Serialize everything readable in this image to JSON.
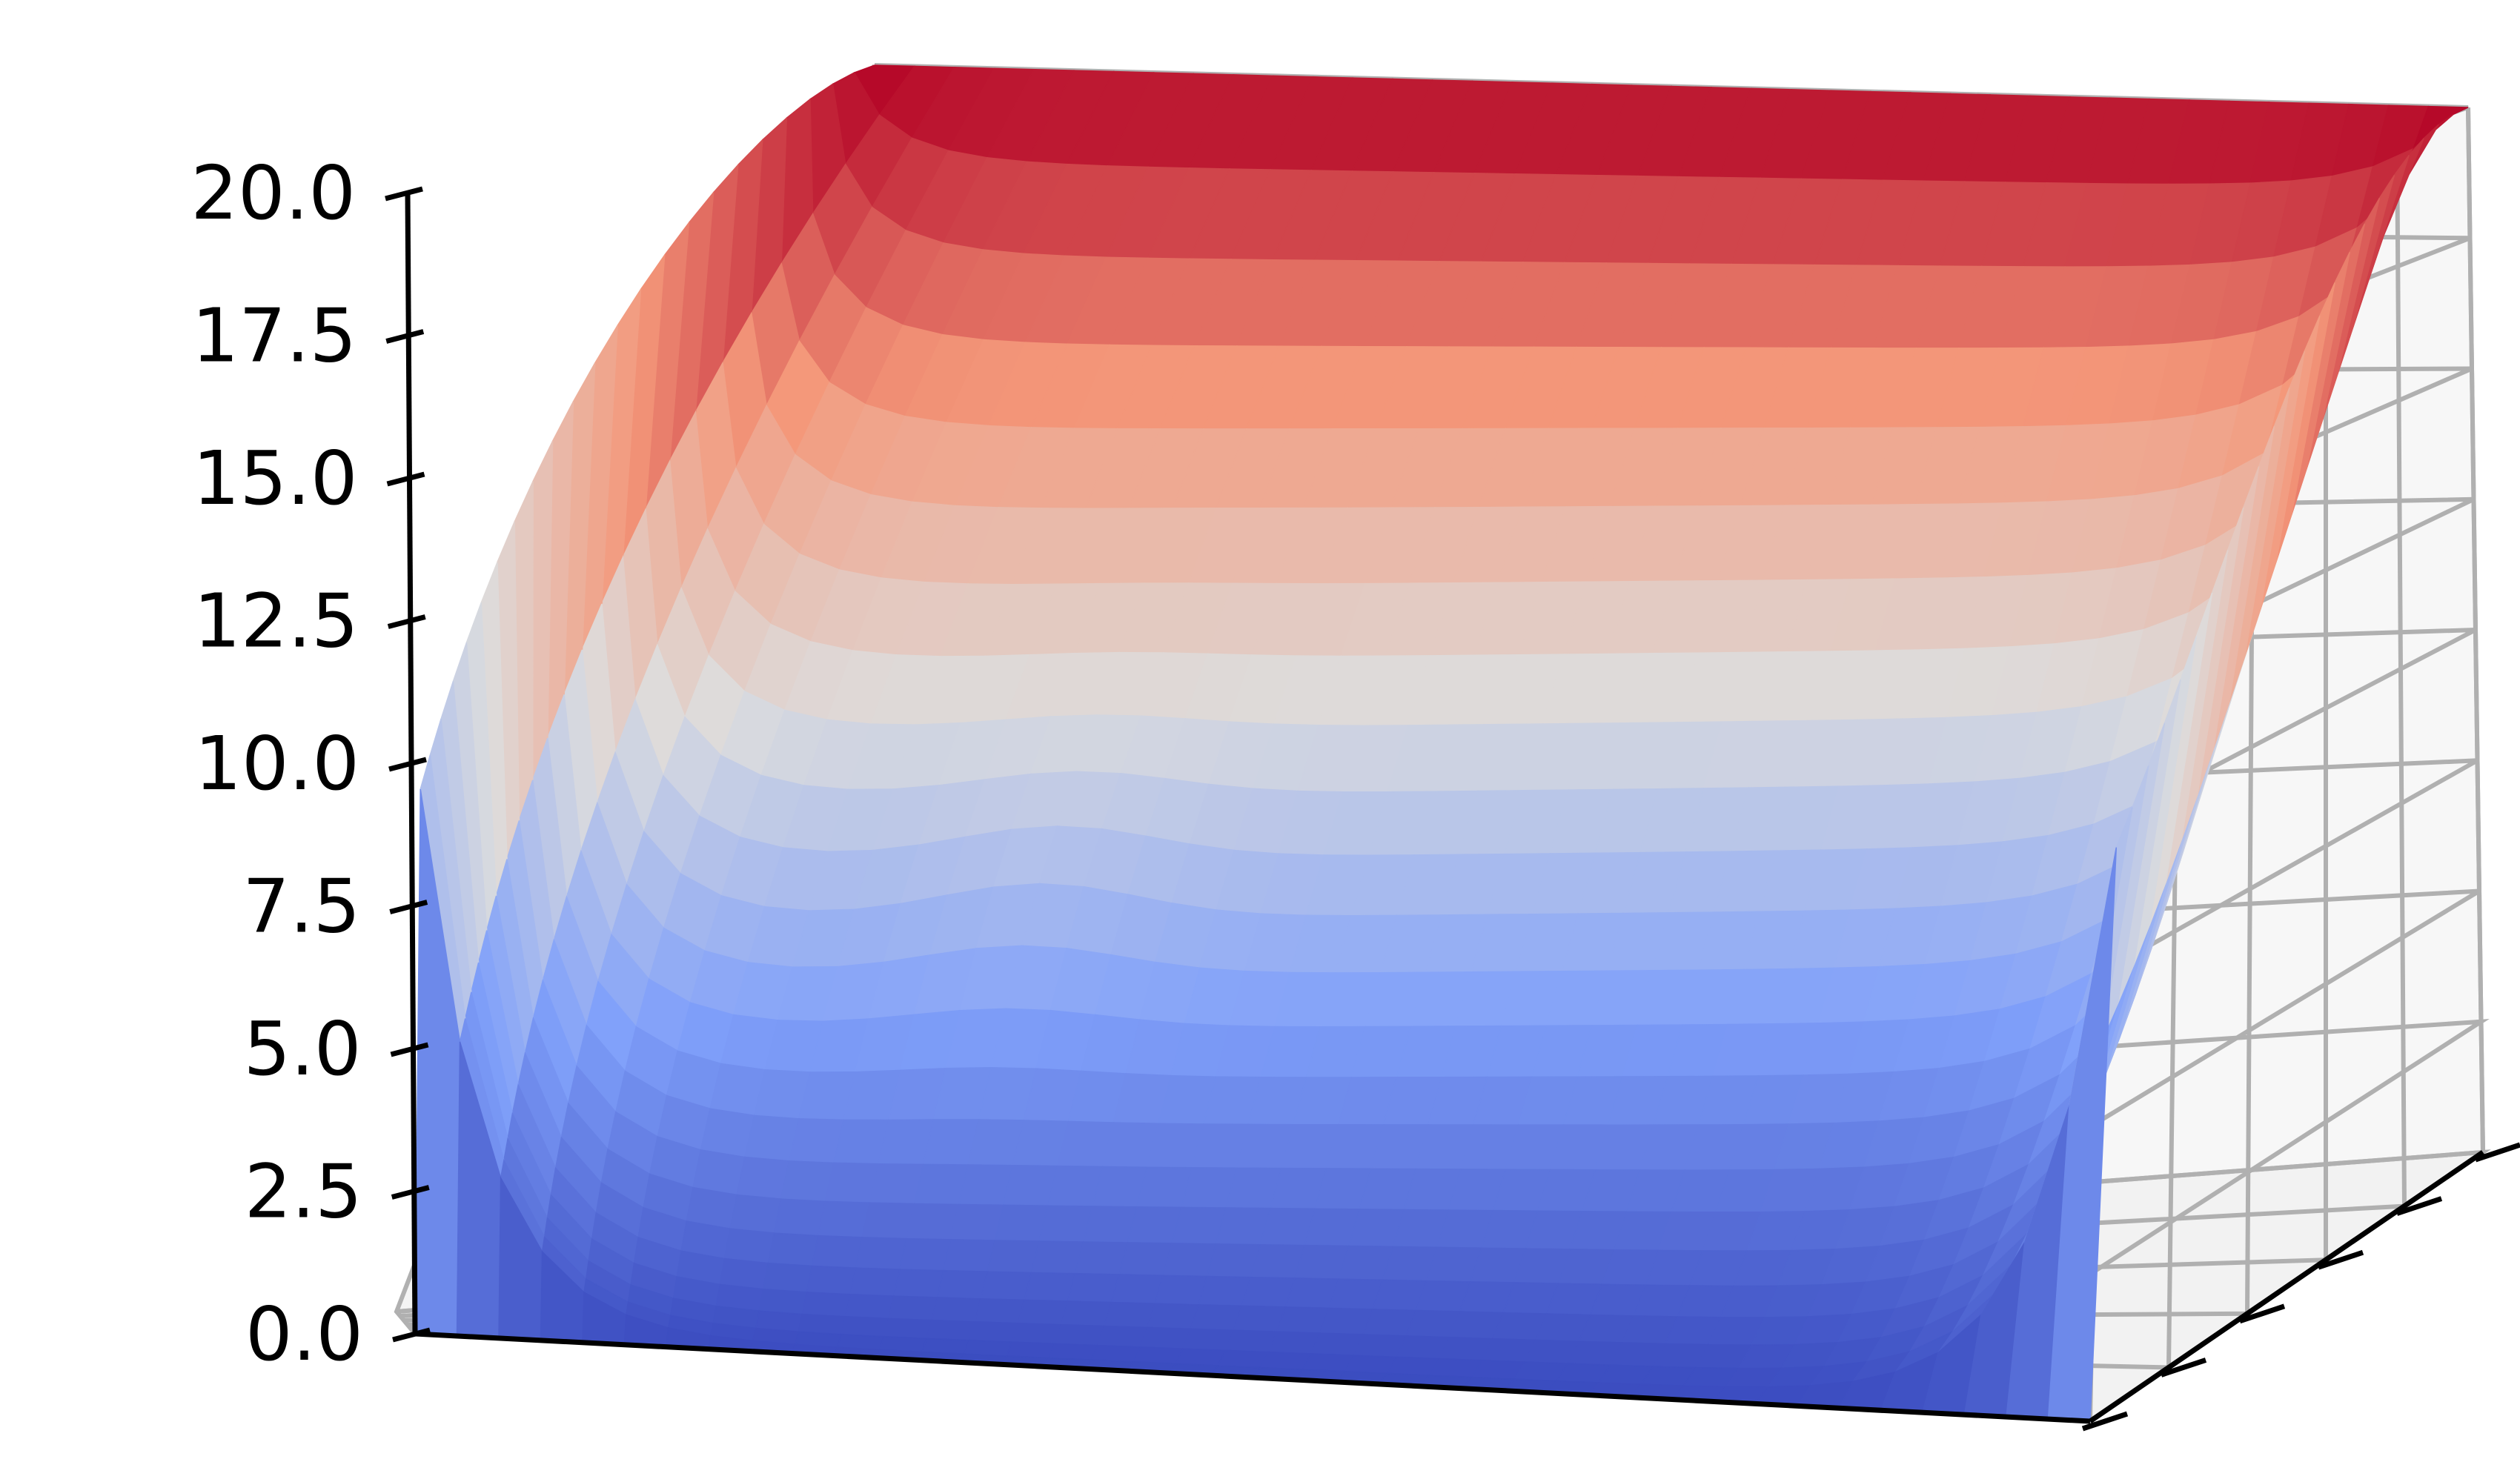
{
  "chart_data": {
    "type": "surface",
    "colormap": "coolwarm",
    "colors": {
      "low": "#3b4cc0",
      "mid": "#dddddd",
      "high": "#b40426",
      "pane": "#f4f4f4",
      "grid": "#b0b0b0",
      "axis": "#000000"
    },
    "z_axis": {
      "range": [
        0,
        20
      ],
      "ticks": [
        {
          "value": 0,
          "label": "0.0"
        },
        {
          "value": 2.5,
          "label": "2.5"
        },
        {
          "value": 5,
          "label": "5.0"
        },
        {
          "value": 7.5,
          "label": "7.5"
        },
        {
          "value": 10,
          "label": "10.0"
        },
        {
          "value": 12.5,
          "label": "12.5"
        },
        {
          "value": 15,
          "label": "15.0"
        },
        {
          "value": 17.5,
          "label": "17.5"
        },
        {
          "value": 20,
          "label": "20.0"
        }
      ]
    },
    "x_axis": {
      "range": [
        0,
        1
      ],
      "tick_count": 6,
      "labels_shown": false
    },
    "y_axis": {
      "range": [
        0,
        1
      ],
      "tick_count": 6,
      "labels_shown": false
    },
    "boundary_values": {
      "back_edge": 20,
      "front_edge": 0,
      "left_edge": "linear 0 to 20",
      "right_edge": "linear 0 to 20"
    },
    "grid": "on",
    "legend": "none",
    "title": "",
    "xlabel": "",
    "ylabel": "",
    "zlabel": ""
  }
}
